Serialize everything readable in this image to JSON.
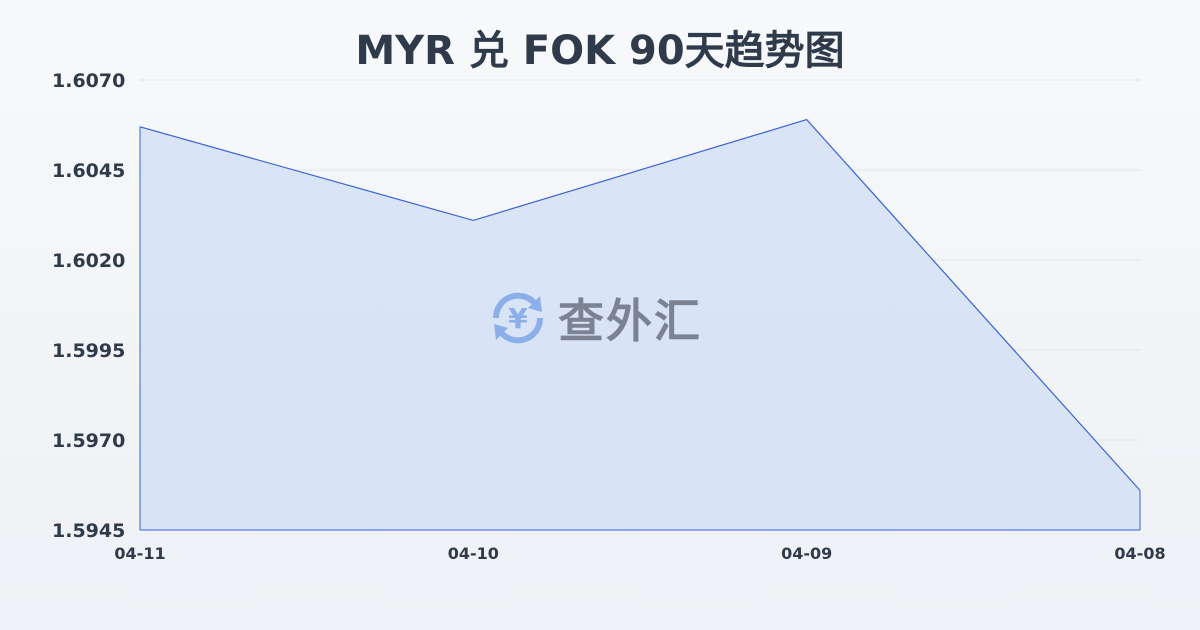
{
  "title": "MYR 兑 FOK 90天趋势图",
  "watermark": "查外汇",
  "colors": {
    "line": "#3a63d8",
    "fill": "#d4e0f6",
    "grid": "#e3e6ea"
  },
  "chart_data": {
    "type": "area",
    "title": "MYR 兑 FOK 90天趋势图",
    "categories": [
      "04-11",
      "04-10",
      "04-09",
      "04-08"
    ],
    "values": [
      1.6057,
      1.6031,
      1.6059,
      1.5956
    ],
    "ylim": [
      1.5945,
      1.607
    ],
    "yticks": [
      "1.6070",
      "1.6045",
      "1.6020",
      "1.5995",
      "1.5970",
      "1.5945"
    ],
    "grid": true,
    "xlabel": "",
    "ylabel": ""
  }
}
